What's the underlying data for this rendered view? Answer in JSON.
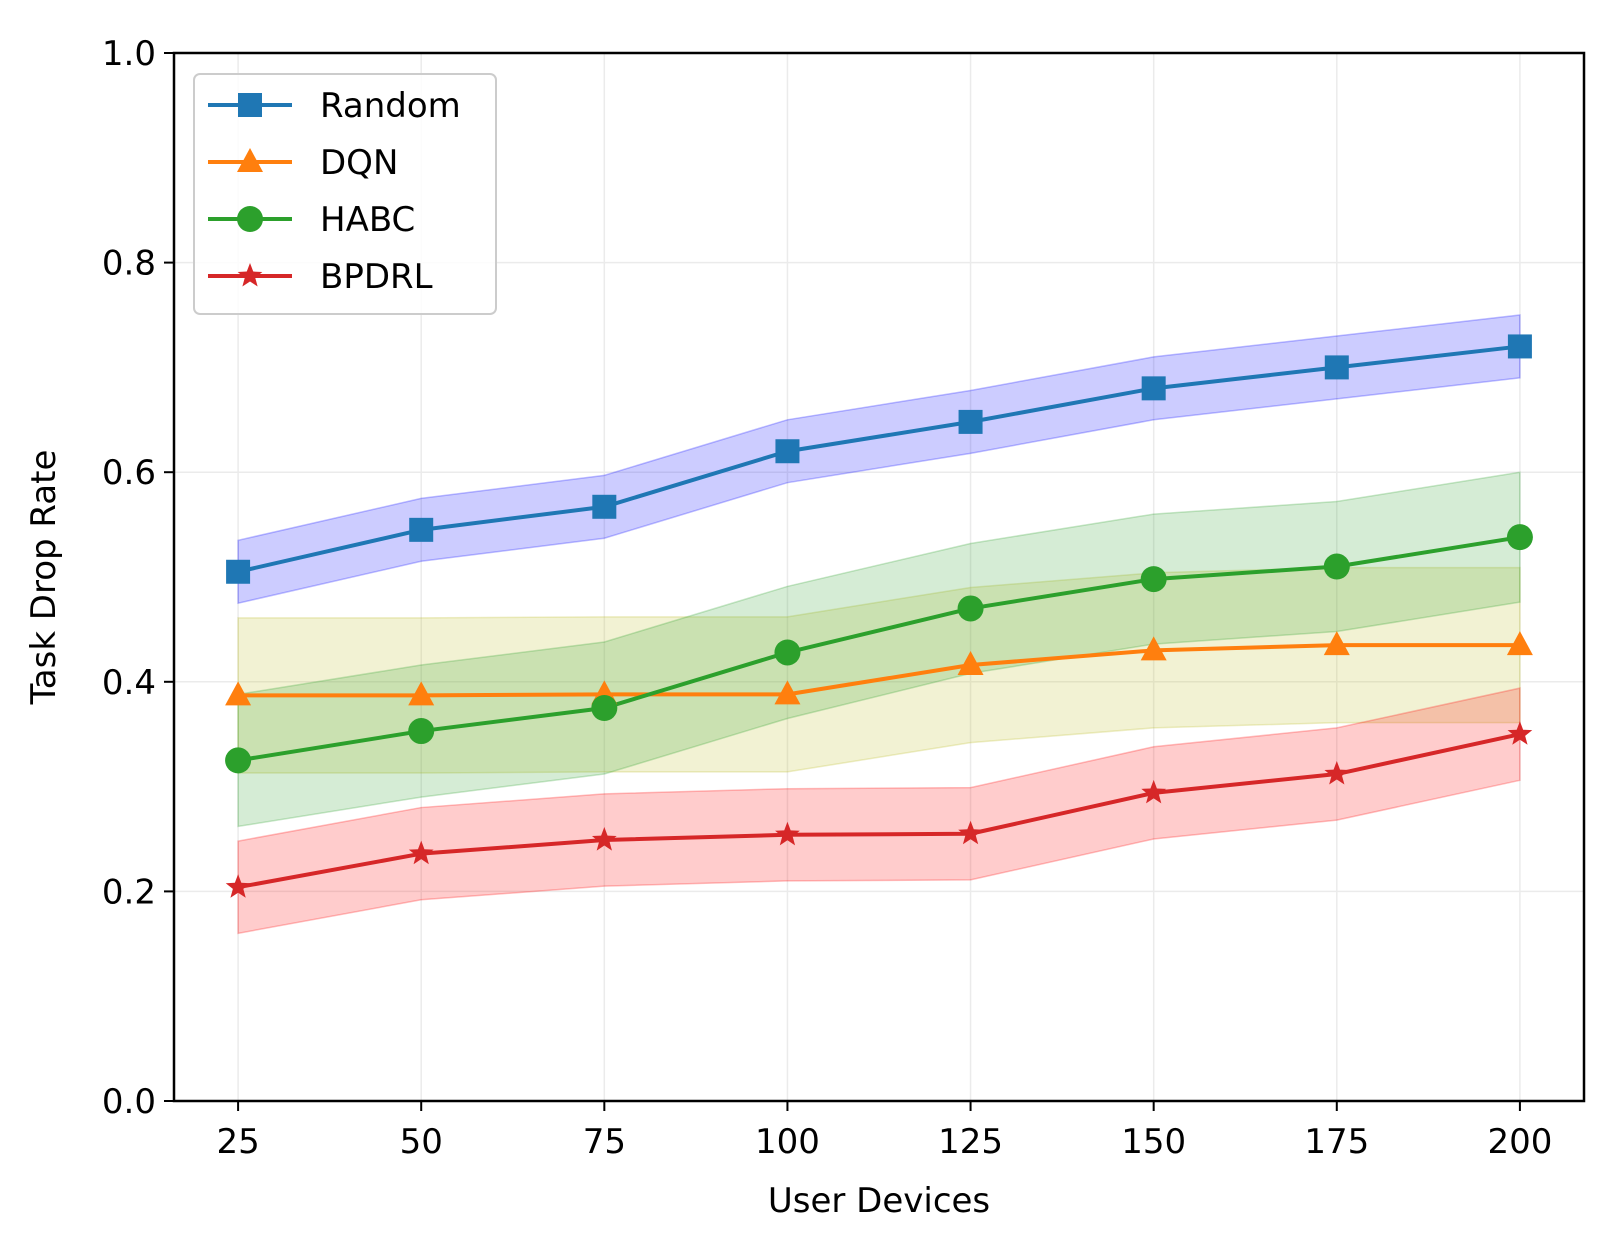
{
  "chart_data": {
    "type": "line",
    "title": "",
    "xlabel": "User Devices",
    "ylabel": "Task Drop Rate",
    "x": [
      25,
      50,
      75,
      100,
      125,
      150,
      175,
      200
    ],
    "xlim": [
      16.25,
      208.75
    ],
    "ylim": [
      0.0,
      1.0
    ],
    "xticks": [
      "25",
      "50",
      "75",
      "100",
      "125",
      "150",
      "175",
      "200"
    ],
    "yticks": [
      "0.0",
      "0.2",
      "0.4",
      "0.6",
      "0.8",
      "1.0"
    ],
    "grid": true,
    "legend_position": "top-left",
    "series": [
      {
        "name": "Random",
        "color": "#1f77b4",
        "band_color": "#0000ff",
        "marker": "square",
        "values": [
          0.505,
          0.545,
          0.567,
          0.62,
          0.648,
          0.68,
          0.7,
          0.72
        ],
        "band_lower": [
          0.475,
          0.515,
          0.537,
          0.59,
          0.618,
          0.65,
          0.67,
          0.69
        ],
        "band_upper": [
          0.535,
          0.575,
          0.597,
          0.65,
          0.678,
          0.71,
          0.73,
          0.75
        ]
      },
      {
        "name": "DQN",
        "color": "#ff7f0e",
        "band_color": "#bcbd22",
        "marker": "triangle",
        "values": [
          0.387,
          0.387,
          0.388,
          0.388,
          0.416,
          0.43,
          0.435,
          0.435
        ],
        "band_lower": [
          0.313,
          0.313,
          0.314,
          0.314,
          0.342,
          0.356,
          0.361,
          0.361
        ],
        "band_upper": [
          0.461,
          0.461,
          0.462,
          0.462,
          0.49,
          0.504,
          0.509,
          0.509
        ]
      },
      {
        "name": "HABC",
        "color": "#2ca02c",
        "band_color": "#2ca02c",
        "marker": "circle",
        "values": [
          0.325,
          0.353,
          0.375,
          0.428,
          0.47,
          0.498,
          0.51,
          0.538
        ],
        "band_lower": [
          0.262,
          0.29,
          0.312,
          0.365,
          0.408,
          0.436,
          0.448,
          0.476
        ],
        "band_upper": [
          0.388,
          0.416,
          0.438,
          0.491,
          0.532,
          0.56,
          0.572,
          0.6
        ]
      },
      {
        "name": "BPDRL",
        "color": "#d62728",
        "band_color": "#ff0000",
        "marker": "star",
        "values": [
          0.204,
          0.236,
          0.249,
          0.254,
          0.255,
          0.294,
          0.312,
          0.35
        ],
        "band_lower": [
          0.16,
          0.192,
          0.205,
          0.21,
          0.211,
          0.25,
          0.268,
          0.306
        ],
        "band_upper": [
          0.248,
          0.28,
          0.293,
          0.298,
          0.299,
          0.338,
          0.356,
          0.394
        ]
      }
    ]
  }
}
